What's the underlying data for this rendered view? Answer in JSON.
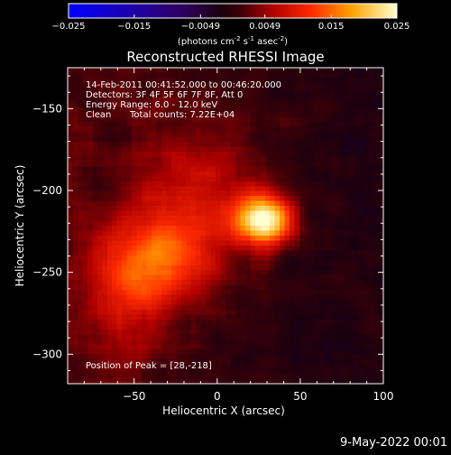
{
  "chart_data": {
    "type": "heatmap",
    "title": "Reconstructed RHESSI Image",
    "xlabel": "Heliocentric X (arcsec)",
    "ylabel": "Heliocentric Y (arcsec)",
    "xlim": [
      -90,
      100
    ],
    "ylim": [
      -318,
      -125
    ],
    "x_ticks": [
      -50,
      0,
      50,
      100
    ],
    "x_tick_labels": [
      "−50",
      "0",
      "50",
      "100"
    ],
    "y_ticks": [
      -150,
      -200,
      -250,
      -300
    ],
    "y_tick_labels": [
      "−150",
      "−200",
      "−250",
      "−300"
    ],
    "colorbar": {
      "range": [
        -0.025,
        0.025
      ],
      "ticks": [
        -0.025,
        -0.015,
        -0.0049,
        0.0049,
        0.015,
        0.025
      ],
      "tick_labels": [
        "−0.025",
        "−0.015",
        "−0.0049",
        "0.0049",
        "0.015",
        "0.025"
      ],
      "unit_label": "(photons cm",
      "unit_sup1": "-2",
      "unit_mid": " s",
      "unit_sup2": "-1",
      "unit_mid2": " asec",
      "unit_sup3": "-2",
      "unit_end": ")"
    },
    "annotations": {
      "line1": "14-Feb-2011 00:41:52.000 to 00:46:20.000",
      "line2": "Detectors: 3F 4F 5F 6F 7F 8F, Att 0",
      "line3": "Energy Range: 6.0 - 12.0 keV",
      "line4_a": "Clean",
      "line4_b": "Total counts: 7.22E+04",
      "peak": "Position of Peak = [28,-218]"
    },
    "sources": [
      {
        "x": 28,
        "y": -218,
        "amplitude": 0.025,
        "sigma_x": 12,
        "sigma_y": 10
      },
      {
        "x": -35,
        "y": -242,
        "amplitude": 0.011,
        "sigma_x": 22,
        "sigma_y": 18
      },
      {
        "x": -10,
        "y": -205,
        "amplitude": 0.007,
        "sigma_x": 30,
        "sigma_y": 30
      },
      {
        "x": -55,
        "y": -270,
        "amplitude": 0.006,
        "sigma_x": 18,
        "sigma_y": 25
      }
    ]
  },
  "footer": {
    "timestamp": "9-May-2022 00:01"
  }
}
